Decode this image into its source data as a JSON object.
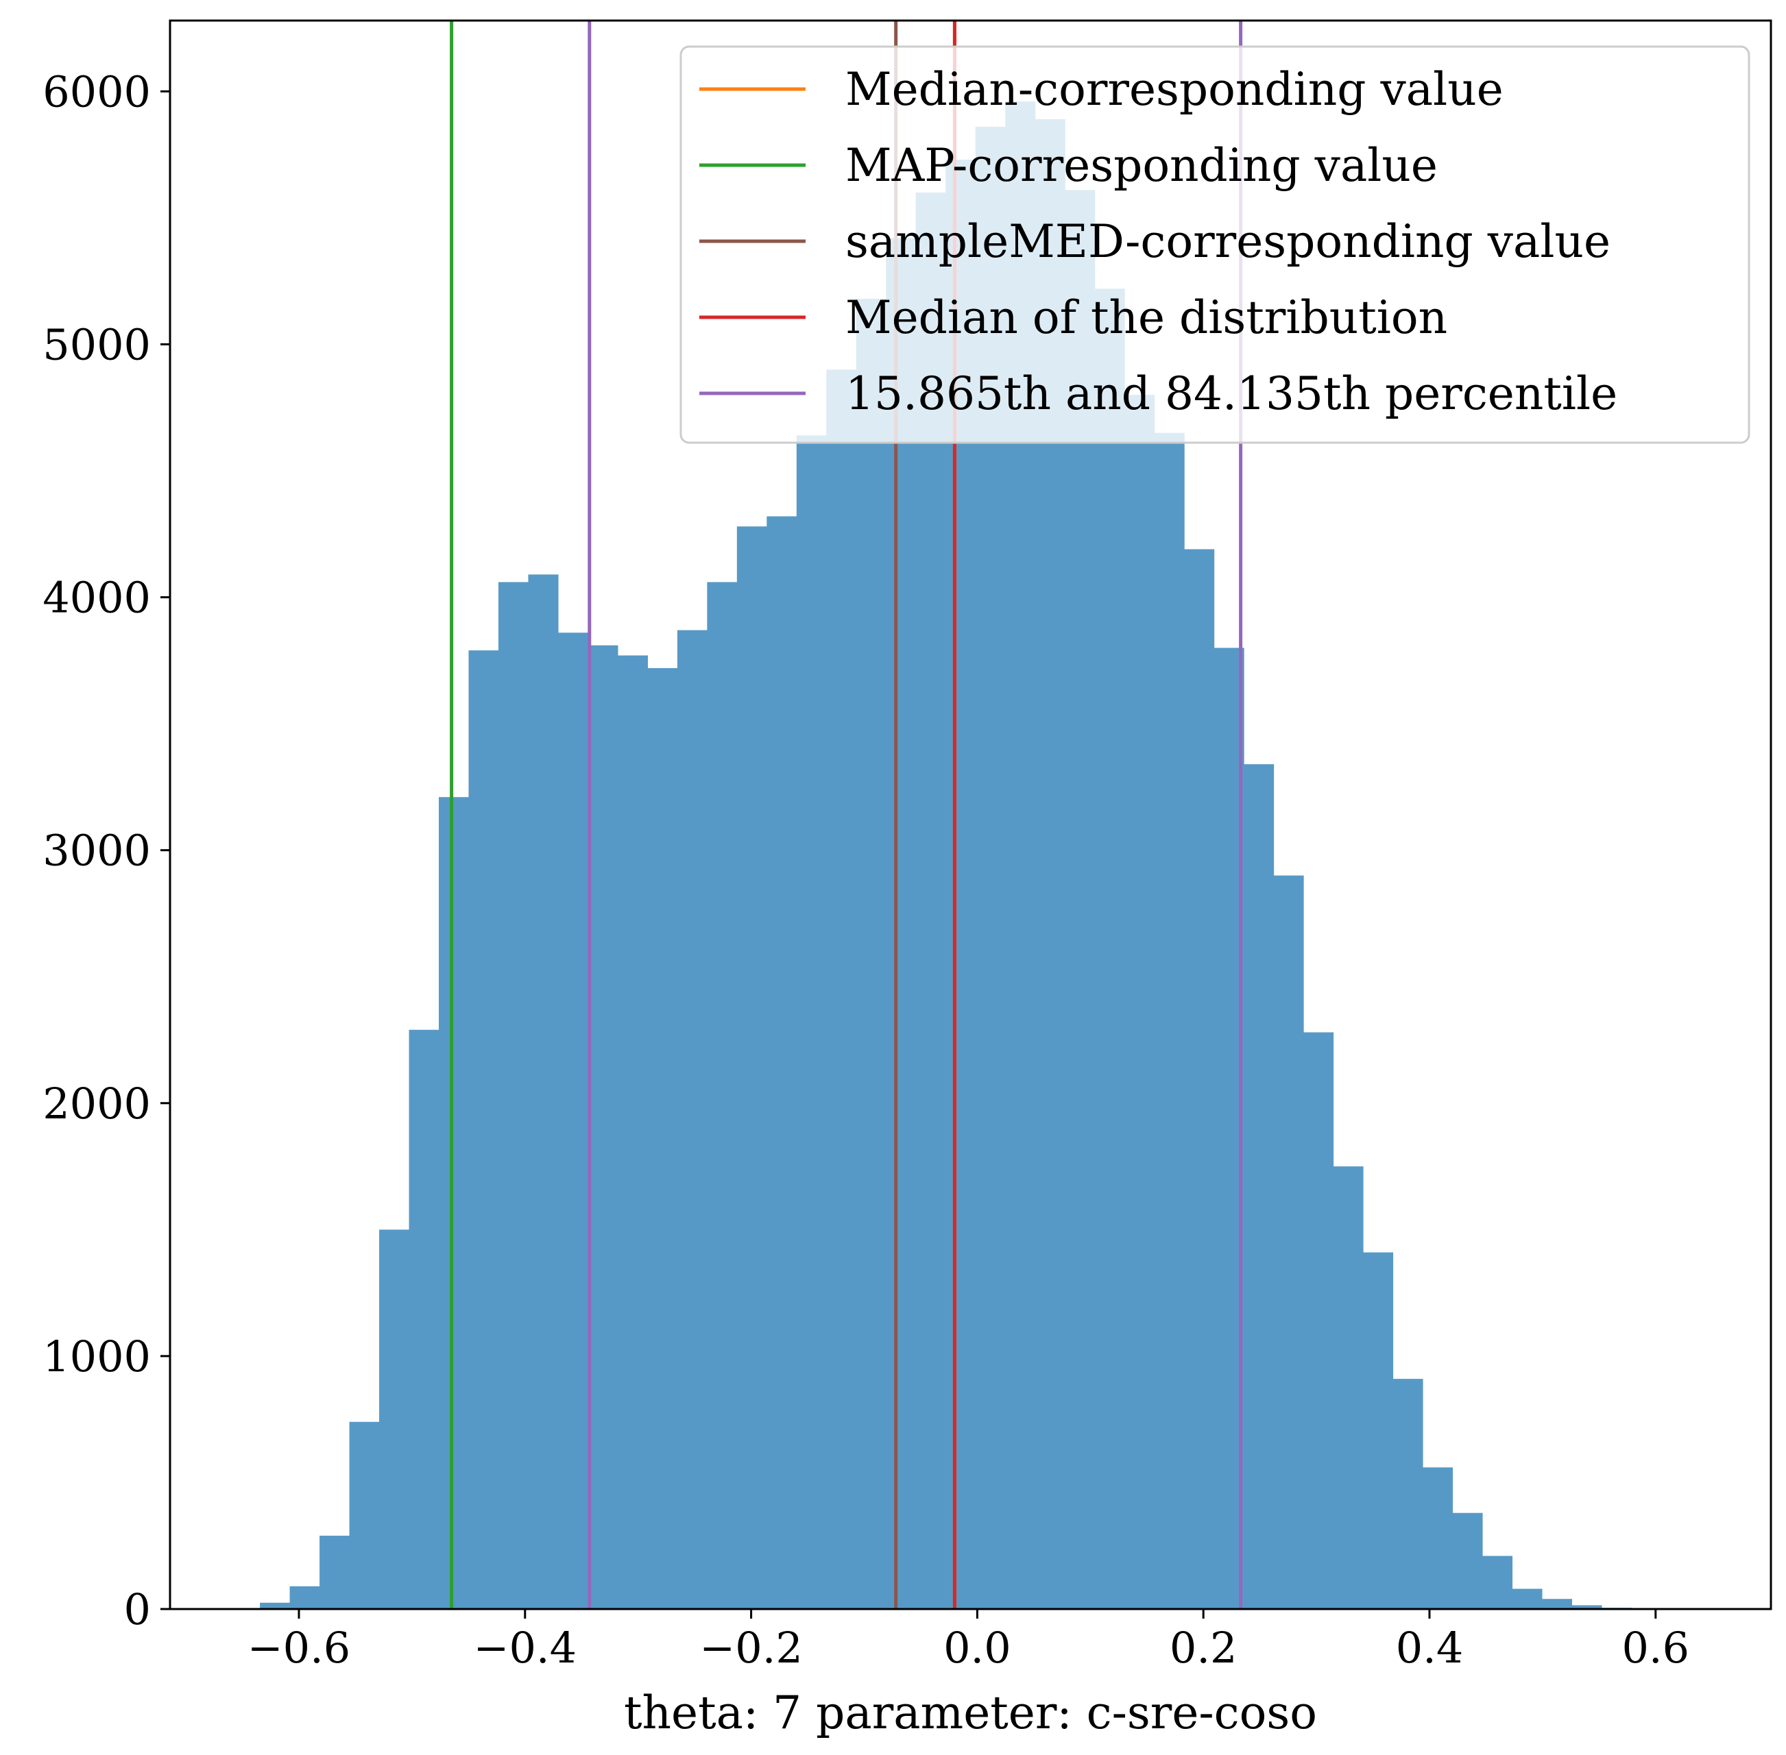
{
  "chart_data": {
    "type": "bar",
    "subtype": "histogram",
    "title": "",
    "xlabel": "theta: 7 parameter: c-sre-coso",
    "ylabel": "",
    "xlim": [
      -0.714,
      0.702
    ],
    "ylim": [
      0,
      6280
    ],
    "x_ticks": [
      -0.6,
      -0.4,
      -0.2,
      0.0,
      0.2,
      0.4,
      0.6
    ],
    "x_tick_labels": [
      "−0.6",
      "−0.4",
      "−0.2",
      "0.0",
      "0.2",
      "0.4",
      "0.6"
    ],
    "y_ticks": [
      0,
      1000,
      2000,
      3000,
      4000,
      5000,
      6000
    ],
    "y_tick_labels": [
      "0",
      "1000",
      "2000",
      "3000",
      "4000",
      "5000",
      "6000"
    ],
    "bar_color": "#5799c6",
    "bins": {
      "start": -0.6345,
      "width": 0.02637,
      "counts": [
        25,
        90,
        290,
        740,
        1500,
        2290,
        3210,
        3790,
        4060,
        4090,
        3860,
        3810,
        3770,
        3720,
        3870,
        4060,
        4280,
        4320,
        4640,
        4900,
        5180,
        5420,
        5600,
        5730,
        5860,
        5960,
        5890,
        5610,
        5220,
        4800,
        4650,
        4190,
        3800,
        3340,
        2900,
        2280,
        1750,
        1410,
        910,
        560,
        380,
        210,
        80,
        40,
        15,
        5
      ]
    },
    "vertical_lines": [
      {
        "name": "Median-corresponding value",
        "x": -0.02,
        "color": "#ff7f0e"
      },
      {
        "name": "MAP-corresponding value",
        "x": -0.465,
        "color": "#2ca02c"
      },
      {
        "name": "sampleMED-corresponding value",
        "x": -0.072,
        "color": "#8c564b"
      },
      {
        "name": "Median of the distribution",
        "x": -0.02,
        "color": "#d62728"
      },
      {
        "name": "15.865th and 84.135th percentile",
        "x": -0.343,
        "color": "#9467bd"
      },
      {
        "name": "",
        "x": 0.233,
        "color": "#9467bd"
      }
    ],
    "legend": {
      "position": "upper right",
      "entries": [
        {
          "label": "Median-corresponding value",
          "color": "#ff7f0e"
        },
        {
          "label": "MAP-corresponding value",
          "color": "#2ca02c"
        },
        {
          "label": "sampleMED-corresponding value",
          "color": "#8c564b"
        },
        {
          "label": "Median of the distribution",
          "color": "#d62728"
        },
        {
          "label": "15.865th and 84.135th percentile",
          "color": "#9467bd"
        }
      ]
    },
    "grid": false
  }
}
